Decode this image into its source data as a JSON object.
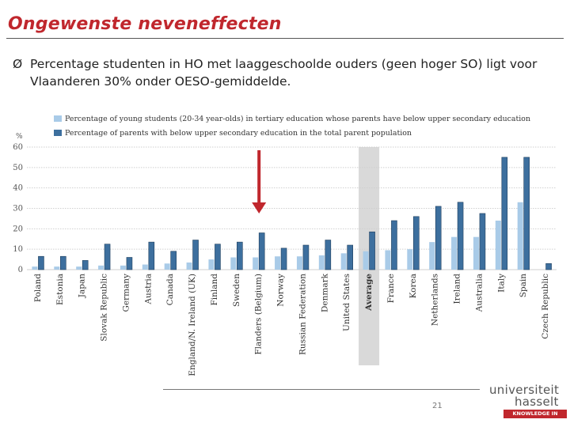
{
  "slide": {
    "title": "Ongewenste neveneffecten",
    "bullet_marker": "Ø",
    "bullet": "Percentage studenten in HO met laaggeschoolde ouders (geen hoger SO) ligt voor Vlaanderen 30% onder OESO-gemiddelde.",
    "page_number": "21"
  },
  "logo": {
    "line1": "universiteit",
    "line2": "hasselt",
    "tagline": "KNOWLEDGE IN ACTION"
  },
  "colors": {
    "title": "#c0272d",
    "series_light": "#a9cbe8",
    "series_dark": "#3d6f9e",
    "highlight_band": "#d9d9d9",
    "arrow": "#c0272d"
  },
  "chart_data": {
    "type": "bar",
    "ylabel": "%",
    "ylim": [
      0,
      60
    ],
    "yticks": [
      0,
      10,
      20,
      30,
      40,
      50,
      60
    ],
    "categories": [
      "Poland",
      "Estonia",
      "Japan",
      "Slovak Republic",
      "Germany",
      "Austria",
      "Canada",
      "England/N. Ireland (UK)",
      "Finland",
      "Sweden",
      "Flanders (Belgium)",
      "Norway",
      "Russian Federation",
      "Denmark",
      "United States",
      "Average",
      "France",
      "Korea",
      "Netherlands",
      "Ireland",
      "Australia",
      "Italy",
      "Spain",
      "Czech Republic"
    ],
    "highlighted_category": "Average",
    "arrow_category": "Flanders (Belgium)",
    "series": [
      {
        "name": "Percentage of young students (20-34 year-olds) in tertiary education whose parents have below upper secondary education",
        "values": [
          1.5,
          1.5,
          1.5,
          2,
          2,
          2.5,
          3,
          3.5,
          5,
          6,
          6,
          6.5,
          6.5,
          7,
          8,
          9,
          9.5,
          10,
          13.5,
          16,
          16,
          24,
          33,
          0
        ]
      },
      {
        "name": "Percentage of parents with below upper secondary education in the total parent population",
        "values": [
          6.5,
          6.5,
          4.5,
          12.5,
          6,
          13.5,
          9,
          14.5,
          12.5,
          13.5,
          18,
          10.5,
          12,
          14.5,
          12,
          18.5,
          24,
          26,
          31,
          33,
          27.5,
          55,
          55,
          3
        ]
      }
    ],
    "legend_position": "top-center",
    "grid": true
  }
}
